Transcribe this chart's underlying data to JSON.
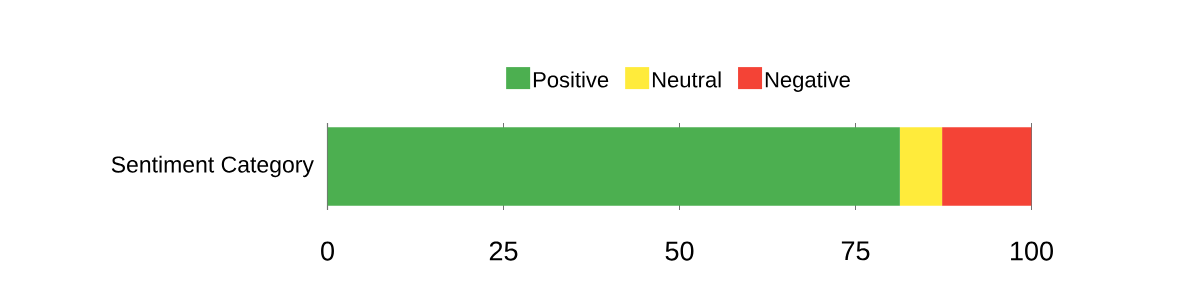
{
  "chart_data": {
    "type": "bar",
    "orientation": "horizontal",
    "stacked": true,
    "categories": [
      "Sentiment Category"
    ],
    "series": [
      {
        "name": "Positive",
        "color": "#4caf50",
        "values": [
          81.3
        ]
      },
      {
        "name": "Neutral",
        "color": "#ffeb3b",
        "values": [
          6.0
        ]
      },
      {
        "name": "Negative",
        "color": "#f44336",
        "values": [
          12.7
        ]
      }
    ],
    "xlim": [
      0,
      100
    ],
    "xticks": [
      0,
      25,
      50,
      75,
      100
    ],
    "grid": "x",
    "legend": "top"
  }
}
